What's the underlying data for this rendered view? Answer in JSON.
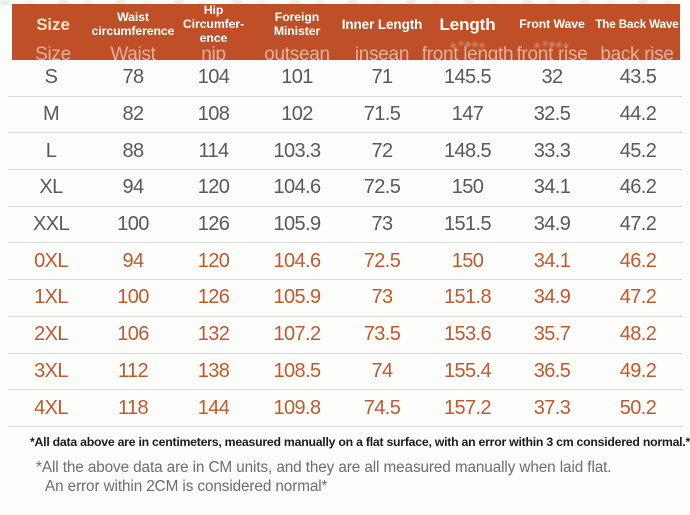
{
  "header": {
    "columns": [
      {
        "label": "Size",
        "sub": "Size"
      },
      {
        "label": "Waist\ncircumference",
        "sub": "Waist"
      },
      {
        "label": "Hip Circumfer-\nence",
        "sub": "nip"
      },
      {
        "label": "Foreign\nMinister",
        "sub": "outsean"
      },
      {
        "label": "Inner Length",
        "sub": "insean"
      },
      {
        "label": "Length",
        "sub": "front length"
      },
      {
        "label": "Front Wave",
        "sub": "front rise"
      },
      {
        "label": "The Back Wave",
        "sub": "back rise"
      }
    ]
  },
  "rows": [
    {
      "size": "S",
      "values": [
        "78",
        "104",
        "101",
        "71",
        "145.5",
        "32",
        "43.5"
      ],
      "highlight": false
    },
    {
      "size": "M",
      "values": [
        "82",
        "108",
        "102",
        "71.5",
        "147",
        "32.5",
        "44.2"
      ],
      "highlight": false
    },
    {
      "size": "L",
      "values": [
        "88",
        "114",
        "103.3",
        "72",
        "148.5",
        "33.3",
        "45.2"
      ],
      "highlight": false
    },
    {
      "size": "XL",
      "values": [
        "94",
        "120",
        "104.6",
        "72.5",
        "150",
        "34.1",
        "46.2"
      ],
      "highlight": false
    },
    {
      "size": "XXL",
      "values": [
        "100",
        "126",
        "105.9",
        "73",
        "151.5",
        "34.9",
        "47.2"
      ],
      "highlight": false
    },
    {
      "size": "0XL",
      "values": [
        "94",
        "120",
        "104.6",
        "72.5",
        "150",
        "34.1",
        "46.2"
      ],
      "highlight": true
    },
    {
      "size": "1XL",
      "values": [
        "100",
        "126",
        "105.9",
        "73",
        "151.8",
        "34.9",
        "47.2"
      ],
      "highlight": true
    },
    {
      "size": "2XL",
      "values": [
        "106",
        "132",
        "107.2",
        "73.5",
        "153.6",
        "35.7",
        "48.2"
      ],
      "highlight": true
    },
    {
      "size": "3XL",
      "values": [
        "112",
        "138",
        "108.5",
        "74",
        "155.4",
        "36.5",
        "49.2"
      ],
      "highlight": true
    },
    {
      "size": "4XL",
      "values": [
        "118",
        "144",
        "109.8",
        "74.5",
        "157.2",
        "37.3",
        "50.2"
      ],
      "highlight": true
    }
  ],
  "notes": [
    "*All data above are in centimeters, measured manually on a flat surface, with an error within 3 cm considered normal.*",
    "*All the above data are in CM units, and they are all measured manually when laid flat.",
    "An error within 2CM is considered normal*"
  ],
  "colors": {
    "header_background": "#bf4f26",
    "header_text": "#ffffff",
    "header_accent_text": "#f0e4c0",
    "row_text": "#595959",
    "highlight_row_text": "#c1592e",
    "divider": "#dad9d7",
    "note_bold": "#1c1c1c",
    "note_gray": "#6e6e6e"
  },
  "chart_data": {
    "type": "table",
    "title": "Garment size chart (cm)",
    "columns": [
      "Size",
      "Waist circumference (Waist)",
      "Hip Circumference (nip)",
      "Foreign Minister (outsean)",
      "Inner Length (insean)",
      "Length (front length)",
      "Front Wave (front rise)",
      "The Back Wave (back rise)"
    ],
    "rows": [
      [
        "S",
        78,
        104,
        101,
        71,
        145.5,
        32,
        43.5
      ],
      [
        "M",
        82,
        108,
        102,
        71.5,
        147,
        32.5,
        44.2
      ],
      [
        "L",
        88,
        114,
        103.3,
        72,
        148.5,
        33.3,
        45.2
      ],
      [
        "XL",
        94,
        120,
        104.6,
        72.5,
        150,
        34.1,
        46.2
      ],
      [
        "XXL",
        100,
        126,
        105.9,
        73,
        151.5,
        34.9,
        47.2
      ],
      [
        "0XL",
        94,
        120,
        104.6,
        72.5,
        150,
        34.1,
        46.2
      ],
      [
        "1XL",
        100,
        126,
        105.9,
        73,
        151.8,
        34.9,
        47.2
      ],
      [
        "2XL",
        106,
        132,
        107.2,
        73.5,
        153.6,
        35.7,
        48.2
      ],
      [
        "3XL",
        112,
        138,
        108.5,
        74,
        155.4,
        36.5,
        49.2
      ],
      [
        "4XL",
        118,
        144,
        109.8,
        74.5,
        157.2,
        37.3,
        50.2
      ]
    ],
    "units": "cm",
    "notes": "Rows 0XL–4XL rendered in orange; rows S–XXL in gray"
  }
}
